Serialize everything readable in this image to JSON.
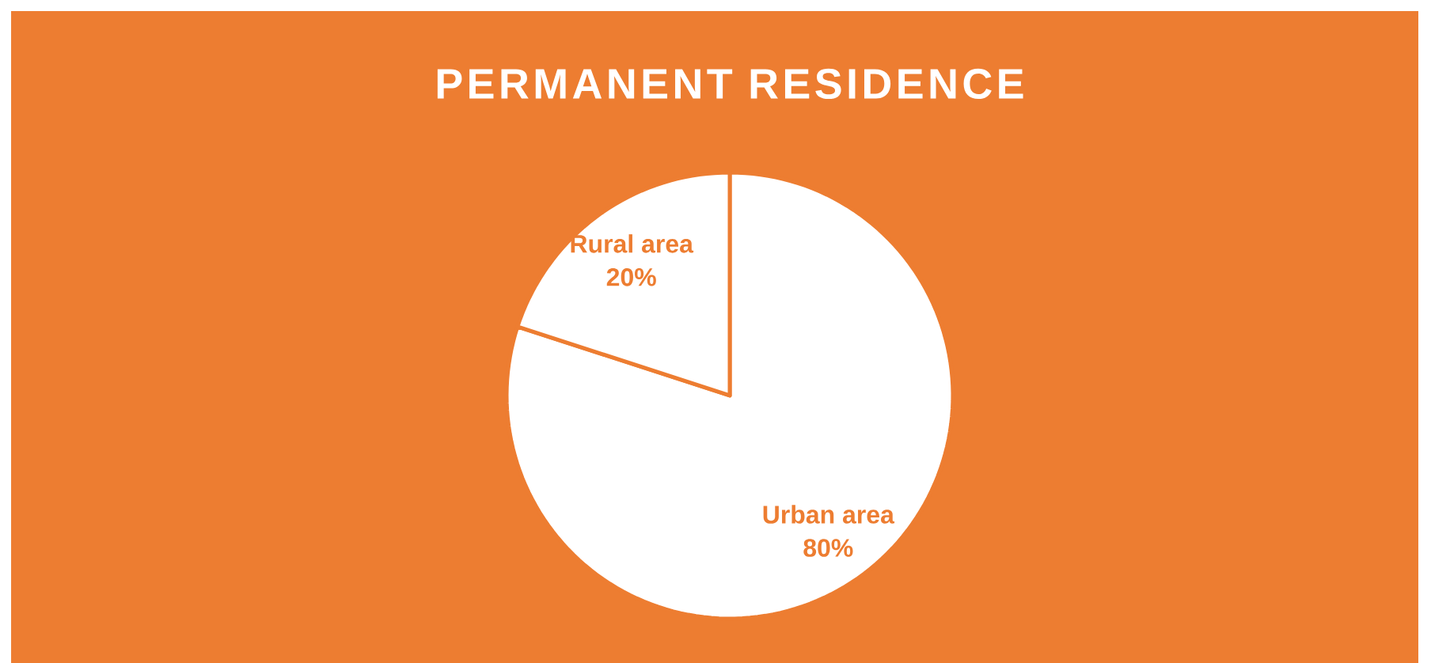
{
  "chart_data": {
    "type": "pie",
    "title": "PERMANENT RESIDENCE",
    "categories": [
      "Urban area",
      "Rural area"
    ],
    "values": [
      80,
      20
    ],
    "value_labels": [
      "80%",
      "20%"
    ],
    "colors": [
      "#ffffff",
      "#ffffff"
    ]
  }
}
